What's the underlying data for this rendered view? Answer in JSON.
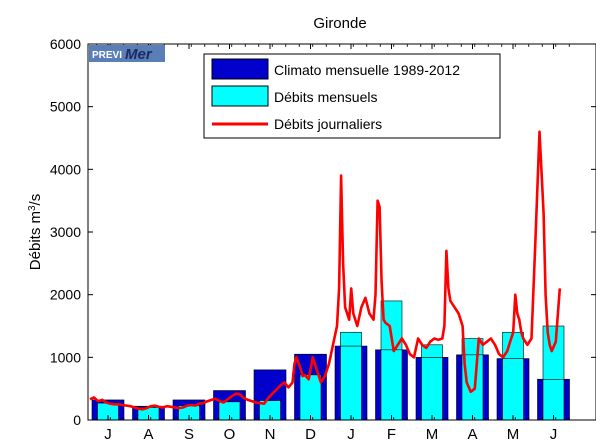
{
  "chart_data": {
    "type": "bar",
    "title": "Gironde",
    "ylabel": "Débits m³/s",
    "ylabel_parts": {
      "base": "Débits m",
      "superscript": "3",
      "unit_end": "/s"
    },
    "xlabel": "",
    "ylim": [
      0,
      6000
    ],
    "yticks": [
      0,
      1000,
      2000,
      3000,
      4000,
      5000,
      6000
    ],
    "categories": [
      "J",
      "A",
      "S",
      "O",
      "N",
      "D",
      "J",
      "F",
      "M",
      "A",
      "M",
      "J"
    ],
    "grid": false,
    "legend_position": "top",
    "logo": {
      "text_a": "PREVI",
      "text_b": "Mer"
    },
    "series": [
      {
        "name": "Climato mensuelle 1989-2012",
        "kind": "bar",
        "color": "#0000cd",
        "values": [
          320,
          220,
          320,
          470,
          800,
          1050,
          1180,
          1120,
          1000,
          1040,
          980,
          650
        ]
      },
      {
        "name": "Débits mensuels",
        "kind": "bar",
        "color": "#00ffff",
        "values": [
          270,
          200,
          230,
          290,
          310,
          720,
          1400,
          1900,
          1200,
          1300,
          1400,
          1500
        ]
      },
      {
        "name": "Débits journaliers",
        "kind": "line",
        "color": "#ff0000",
        "x": [
          0.0,
          0.1,
          0.2,
          0.3,
          0.4,
          0.5,
          0.6,
          0.7,
          0.8,
          0.9,
          1.0,
          1.1,
          1.2,
          1.3,
          1.4,
          1.5,
          1.6,
          1.7,
          1.8,
          1.9,
          2.0,
          2.1,
          2.2,
          2.3,
          2.4,
          2.5,
          2.6,
          2.7,
          2.8,
          2.9,
          3.0,
          3.1,
          3.2,
          3.3,
          3.4,
          3.5,
          3.6,
          3.7,
          3.8,
          3.9,
          4.0,
          4.1,
          4.2,
          4.3,
          4.4,
          4.5,
          4.6,
          4.7,
          4.8,
          4.9,
          5.0,
          5.05,
          5.1,
          5.2,
          5.25,
          5.3,
          5.4,
          5.5,
          5.6,
          5.7,
          5.8,
          5.9,
          6.0,
          6.1,
          6.15,
          6.2,
          6.25,
          6.3,
          6.4,
          6.45,
          6.5,
          6.6,
          6.7,
          6.8,
          6.9,
          7.0,
          7.05,
          7.1,
          7.15,
          7.2,
          7.25,
          7.3,
          7.4,
          7.5,
          7.6,
          7.7,
          7.8,
          7.9,
          8.0,
          8.1,
          8.2,
          8.3,
          8.4,
          8.5,
          8.6,
          8.7,
          8.75,
          8.8,
          8.85,
          8.9,
          9.0,
          9.1,
          9.15,
          9.2,
          9.25,
          9.3,
          9.4,
          9.5,
          9.6,
          9.7,
          9.8,
          9.9,
          10.0,
          10.1,
          10.2,
          10.3,
          10.4,
          10.45,
          10.5,
          10.55,
          10.6,
          10.65,
          10.7,
          10.8,
          10.9,
          11.0,
          11.1,
          11.2,
          11.25,
          11.3,
          11.35,
          11.4,
          11.5,
          11.6
        ],
        "values": [
          330,
          360,
          300,
          320,
          280,
          260,
          250,
          250,
          240,
          230,
          220,
          200,
          180,
          170,
          190,
          220,
          230,
          210,
          200,
          220,
          210,
          200,
          190,
          200,
          230,
          240,
          230,
          260,
          270,
          300,
          320,
          340,
          300,
          280,
          330,
          380,
          420,
          410,
          350,
          320,
          300,
          280,
          270,
          260,
          350,
          420,
          480,
          550,
          600,
          520,
          600,
          900,
          1000,
          820,
          700,
          720,
          650,
          1000,
          800,
          600,
          700,
          900,
          1200,
          1500,
          2100,
          3900,
          2500,
          1800,
          1600,
          2100,
          1700,
          1500,
          1800,
          1950,
          1700,
          1600,
          2000,
          3500,
          3400,
          2200,
          1600,
          1550,
          1500,
          1100,
          1200,
          1300,
          1200,
          1050,
          1000,
          1300,
          1200,
          1150,
          1250,
          1300,
          1280,
          1300,
          1500,
          2700,
          2100,
          1900,
          1800,
          1700,
          1600,
          1500,
          900,
          600,
          450,
          500,
          1300,
          1200,
          1250,
          1300,
          1200,
          1050,
          1000,
          1100,
          1300,
          1400,
          2000,
          1700,
          1600,
          1400,
          1300,
          1200,
          1300,
          2900,
          4600,
          3300,
          2000,
          1400,
          1200,
          1100,
          1250,
          2100
        ]
      }
    ]
  }
}
